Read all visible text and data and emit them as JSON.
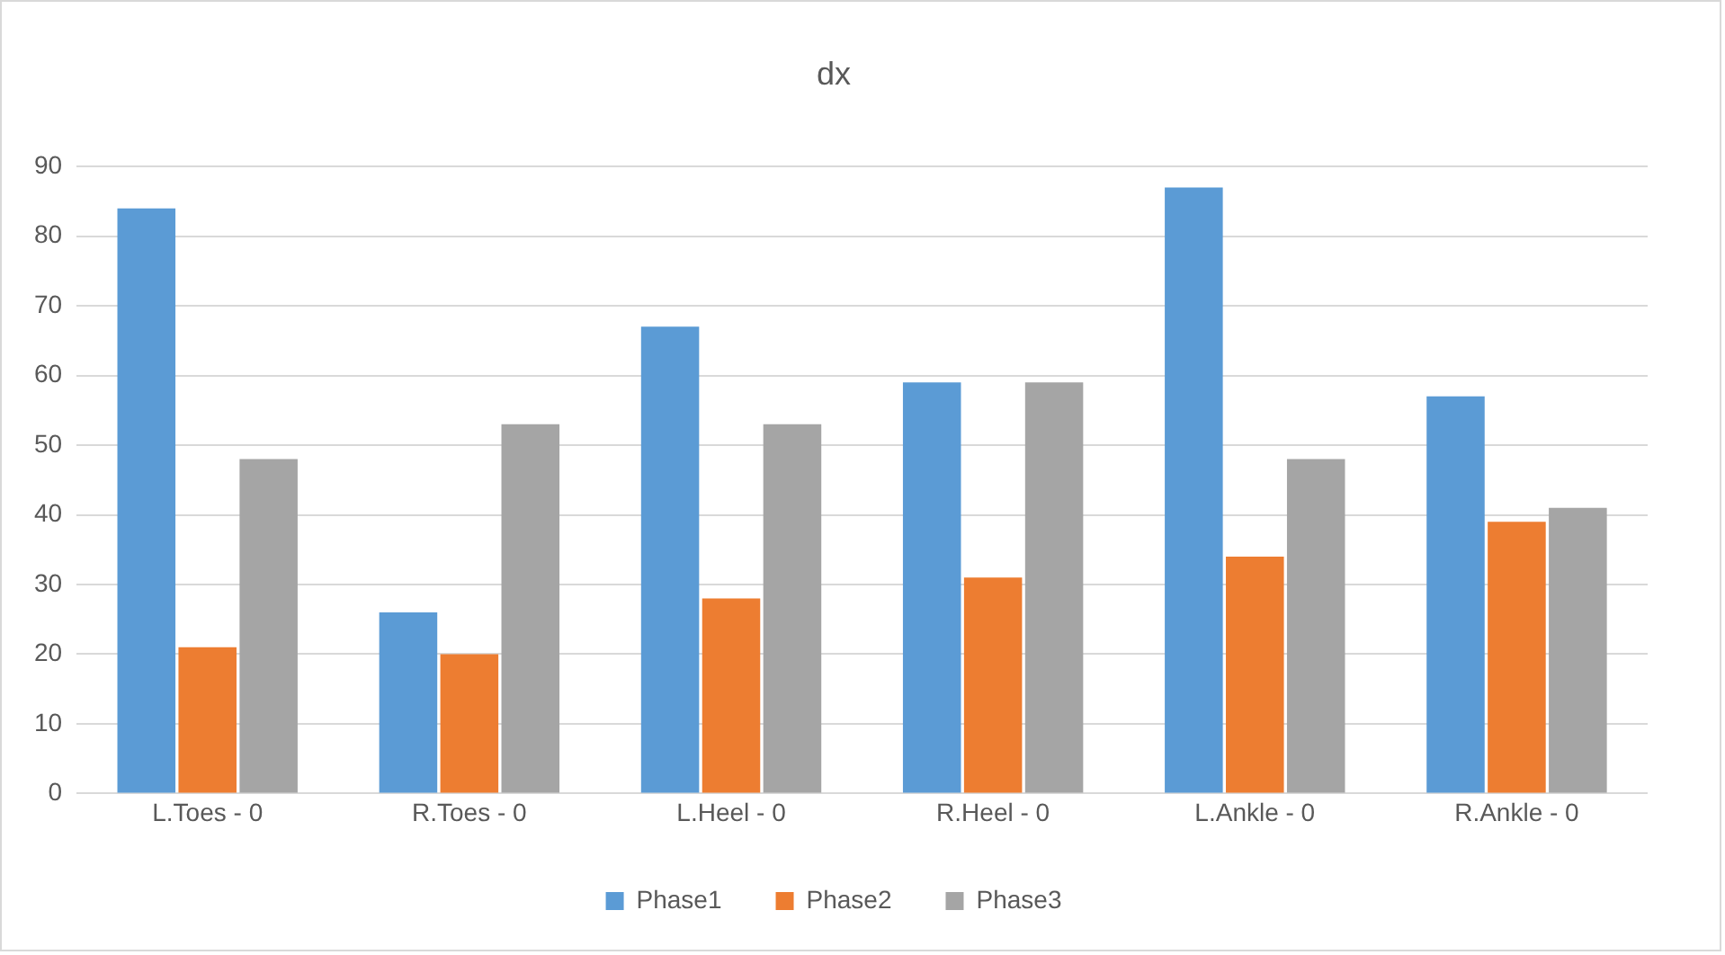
{
  "chart_data": {
    "type": "bar",
    "title": "dx",
    "categories": [
      "L.Toes - 0",
      "R.Toes - 0",
      "L.Heel - 0",
      "R.Heel - 0",
      "L.Ankle - 0",
      "R.Ankle - 0"
    ],
    "series": [
      {
        "name": "Phase1",
        "color": "#5b9bd5",
        "values": [
          84,
          26,
          67,
          59,
          87,
          57
        ]
      },
      {
        "name": "Phase2",
        "color": "#ed7d31",
        "values": [
          21,
          20,
          28,
          31,
          34,
          39
        ]
      },
      {
        "name": "Phase3",
        "color": "#a5a5a5",
        "values": [
          48,
          53,
          53,
          59,
          48,
          41
        ]
      }
    ],
    "ylim": [
      0,
      90
    ],
    "yticks": [
      0,
      10,
      20,
      30,
      40,
      50,
      60,
      70,
      80,
      90
    ],
    "grid": "y",
    "legend": "bottom"
  }
}
